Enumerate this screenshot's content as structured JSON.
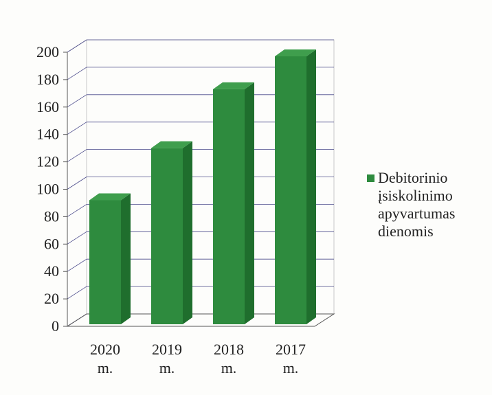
{
  "chart_data": {
    "type": "bar",
    "categories": [
      "2020 m.",
      "2019 m.",
      "2018 m.",
      "2017 m."
    ],
    "series": [
      {
        "name": "Debitorinio įsiskolinimo apyvartumas dienomis",
        "values": [
          92,
          130,
          173,
          197
        ]
      }
    ],
    "yticks": [
      "0",
      "20",
      "40",
      "60",
      "80",
      "100",
      "120",
      "140",
      "160",
      "180",
      "200"
    ],
    "ylim": [
      0,
      200
    ],
    "grid": true,
    "legend_position": "right",
    "colors": {
      "bar": "#2e8b3e",
      "bar_side": "#1f6e2d",
      "bar_top": "#3f9e4d",
      "grid": "#4a4a8a"
    }
  }
}
